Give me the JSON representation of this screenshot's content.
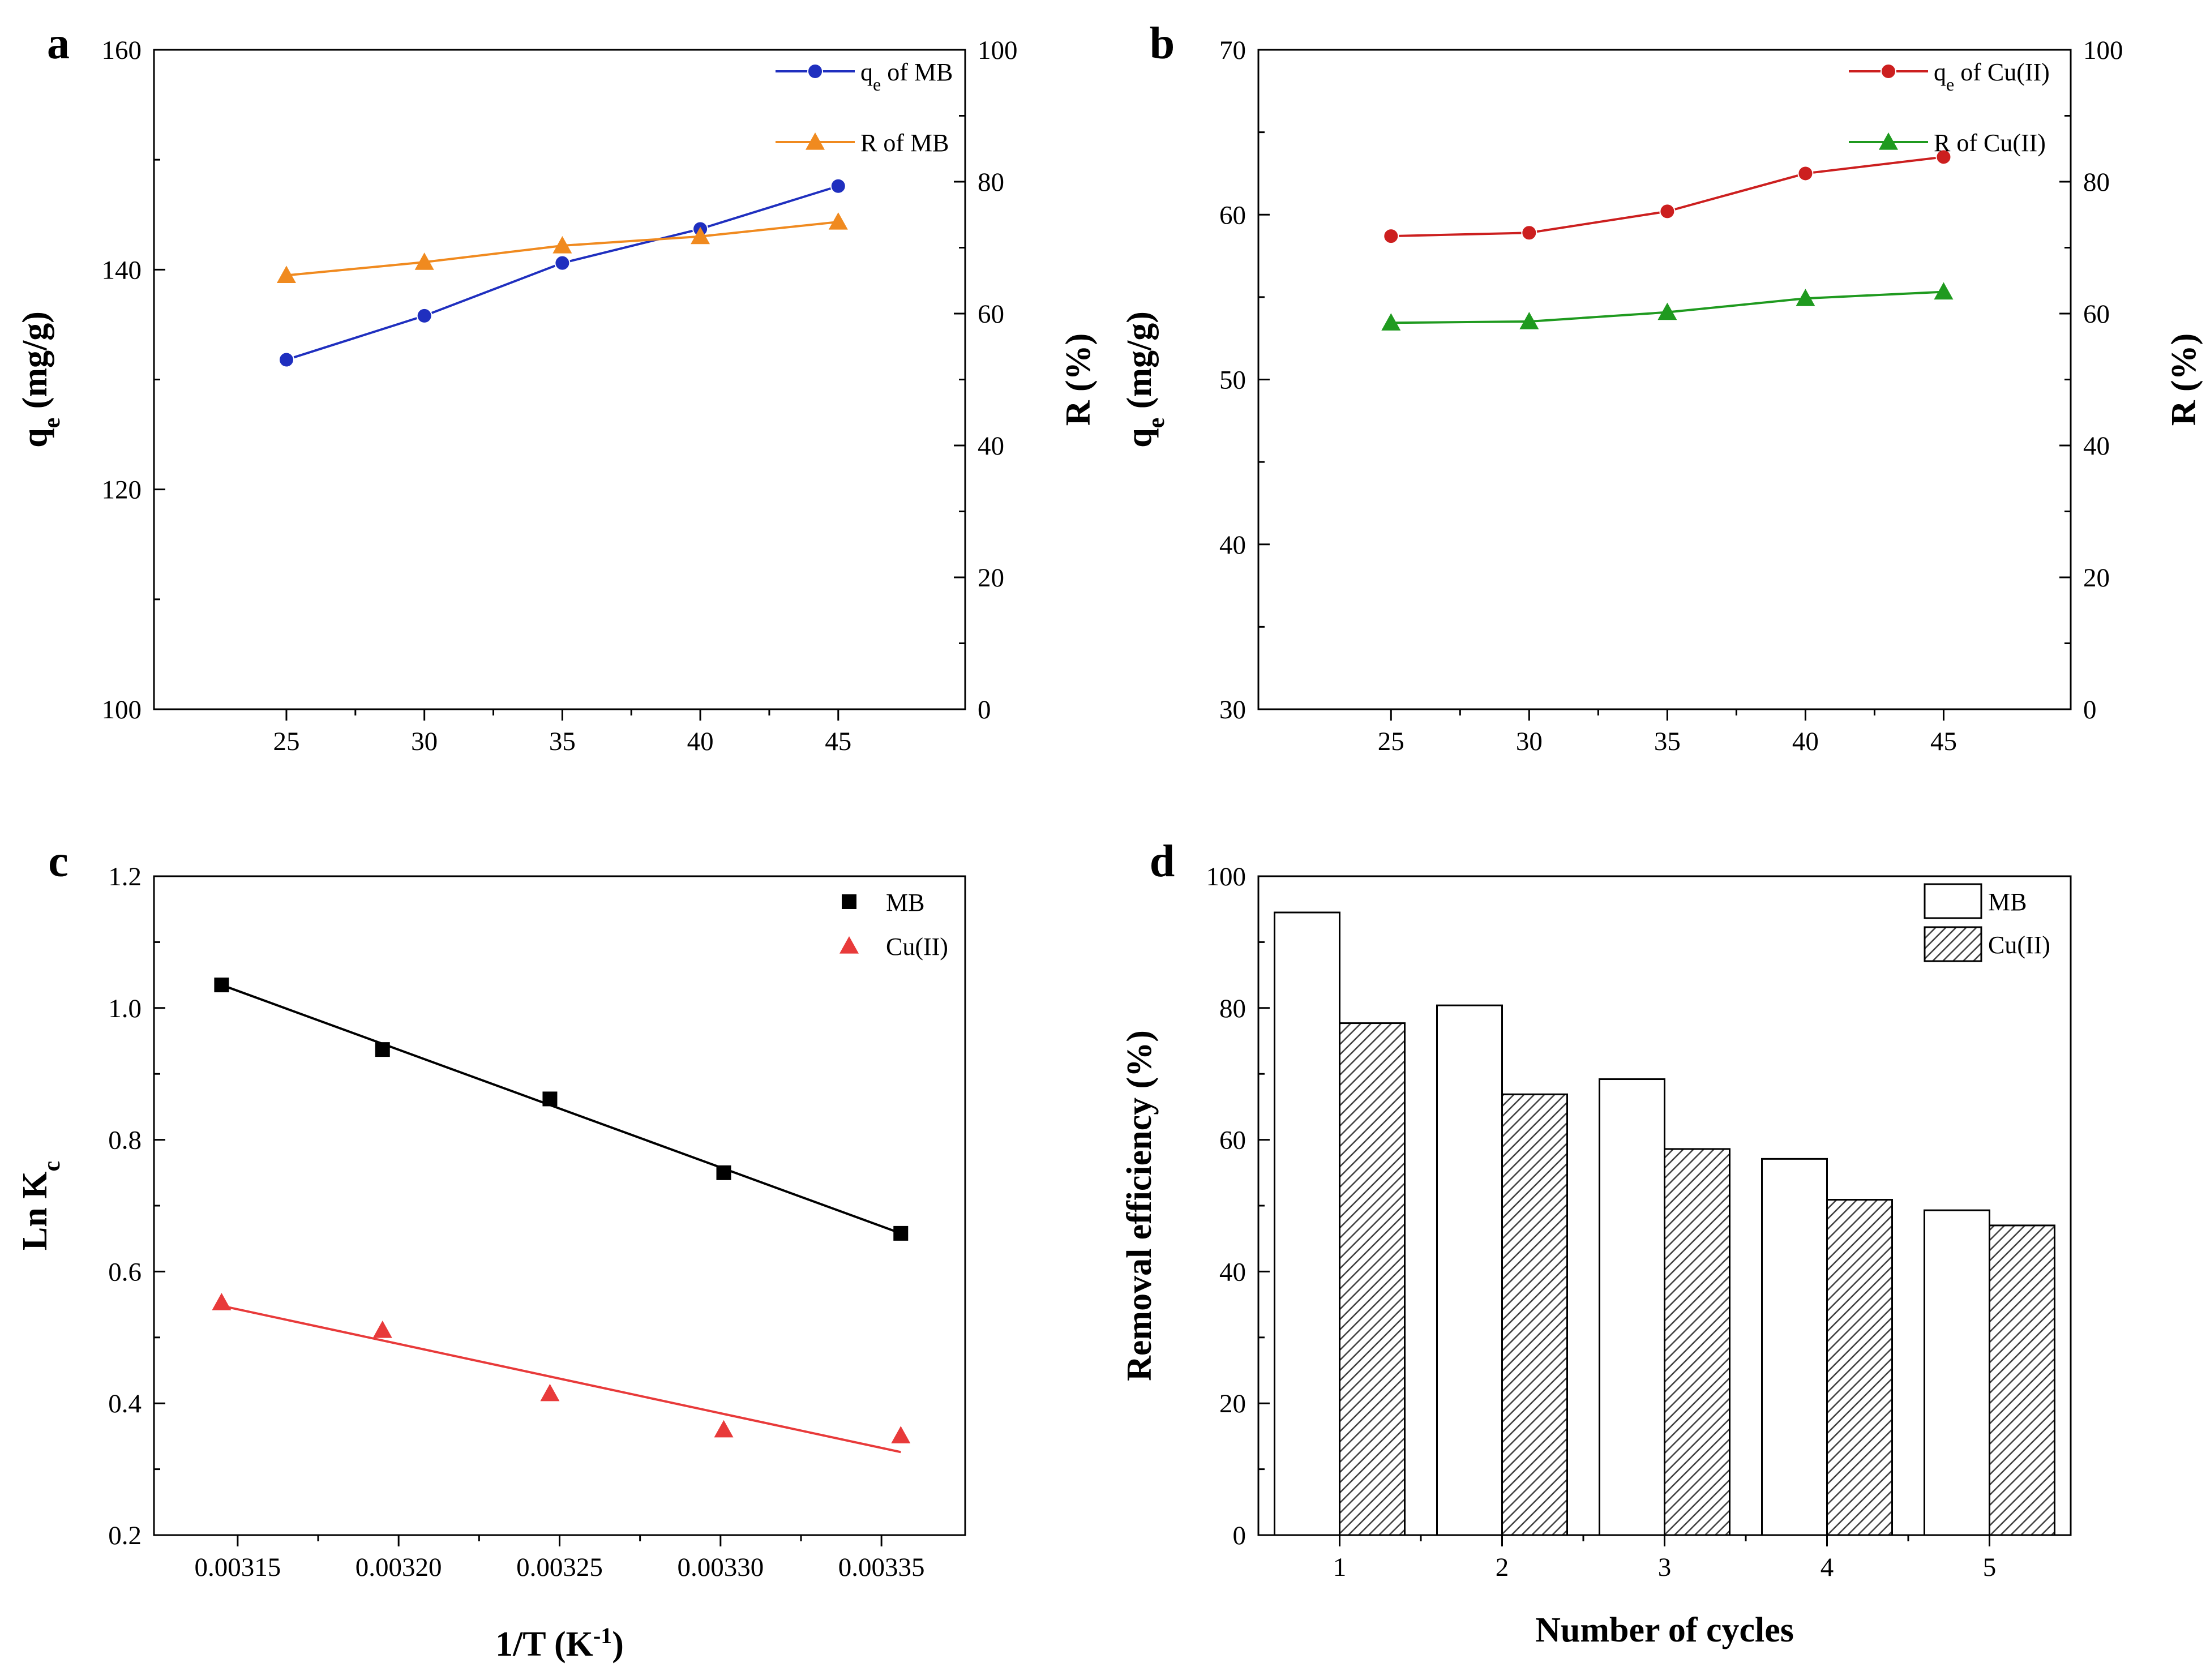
{
  "chart_data": [
    {
      "panel": "a",
      "type": "line",
      "x": [
        25,
        30,
        35,
        40,
        45
      ],
      "xticks": [
        "25",
        "30",
        "35",
        "40",
        "45"
      ],
      "xlim": [
        20.2,
        49.6
      ],
      "ylabel": "qe (mg/g)",
      "ylim": [
        100,
        160
      ],
      "yticks": [
        "100",
        "120",
        "140",
        "160"
      ],
      "y2label": "R (%)",
      "y2lim": [
        0,
        100
      ],
      "y2ticks": [
        "0",
        "20",
        "40",
        "60",
        "80",
        "100"
      ],
      "series": [
        {
          "name": "qe of MB",
          "axis": "left",
          "marker": "circle",
          "color": "#1f2fbf",
          "values": [
            131.8,
            135.8,
            140.6,
            143.7,
            147.6
          ]
        },
        {
          "name": "R of MB",
          "axis": "right",
          "marker": "triangle",
          "color": "#f08a1f",
          "values": [
            65.8,
            67.8,
            70.3,
            71.7,
            73.9
          ]
        }
      ]
    },
    {
      "panel": "b",
      "type": "line",
      "x": [
        25,
        30,
        35,
        40,
        45
      ],
      "xticks": [
        "25",
        "30",
        "35",
        "40",
        "45"
      ],
      "xlim": [
        20.2,
        49.6
      ],
      "ylabel": "qe (mg/g)",
      "ylim": [
        30,
        70
      ],
      "yticks": [
        "30",
        "40",
        "50",
        "60",
        "70"
      ],
      "y2label": "R (%)",
      "y2lim": [
        0,
        100
      ],
      "y2ticks": [
        "0",
        "20",
        "40",
        "60",
        "80",
        "100"
      ],
      "series": [
        {
          "name": "qe of Cu(II)",
          "axis": "left",
          "marker": "circle",
          "color": "#cc1f1f",
          "values": [
            58.7,
            58.9,
            60.2,
            62.5,
            63.5
          ]
        },
        {
          "name": "R of Cu(II)",
          "axis": "right",
          "marker": "triangle",
          "color": "#1f9a1f",
          "values": [
            58.6,
            58.8,
            60.2,
            62.3,
            63.3
          ]
        }
      ]
    },
    {
      "panel": "c",
      "type": "scatter",
      "x": [
        0.003145,
        0.003195,
        0.003247,
        0.003301,
        0.003356
      ],
      "xticks": [
        "0.00315",
        "0.00320",
        "0.00325",
        "0.00330",
        "0.00335"
      ],
      "xlim": [
        0.003124,
        0.003376
      ],
      "xlabel": "1/T (K-1)",
      "ylabel": "Ln Kc",
      "ylim": [
        0.2,
        1.2
      ],
      "yticks": [
        "0.2",
        "0.4",
        "0.6",
        "0.8",
        "1.0",
        "1.2"
      ],
      "series": [
        {
          "name": "MB",
          "marker": "square",
          "color": "#000000",
          "values": [
            1.035,
            0.937,
            0.862,
            0.75,
            0.658
          ],
          "fit": [
            1.035,
            0.658
          ]
        },
        {
          "name": "Cu(II)",
          "marker": "triangle",
          "color": "#e83a3a",
          "values": [
            0.553,
            0.511,
            0.415,
            0.36,
            0.351
          ],
          "fit": [
            0.548,
            0.326
          ]
        }
      ]
    },
    {
      "panel": "d",
      "type": "bar",
      "categories": [
        "1",
        "2",
        "3",
        "4",
        "5"
      ],
      "xlabel": "Number of cycles",
      "ylabel": "Removal efficiency (%)",
      "ylim": [
        0,
        100
      ],
      "yticks": [
        "0",
        "20",
        "40",
        "60",
        "80",
        "100"
      ],
      "series": [
        {
          "name": "MB",
          "fill": "white",
          "values": [
            94.5,
            80.4,
            69.2,
            57.1,
            49.3
          ]
        },
        {
          "name": "Cu(II)",
          "fill": "hatch",
          "values": [
            77.7,
            66.9,
            58.6,
            50.9,
            47.0
          ]
        }
      ]
    }
  ]
}
